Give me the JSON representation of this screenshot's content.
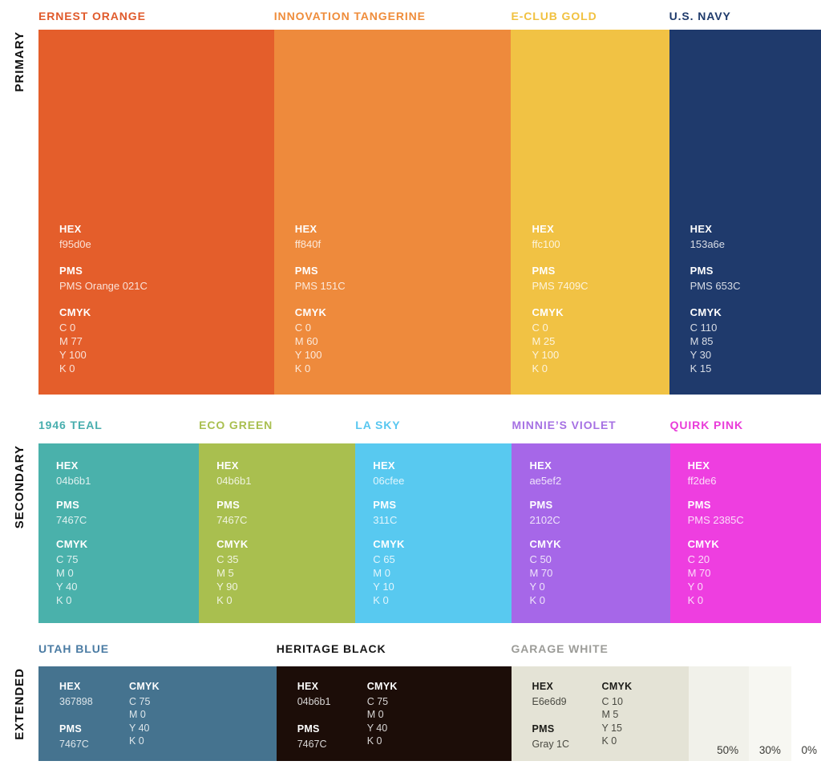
{
  "field_labels": {
    "hex": "HEX",
    "pms": "PMS",
    "cmyk": "CMYK"
  },
  "sections": [
    {
      "label": "PRIMARY",
      "swatches": [
        {
          "name": "ERNEST ORANGE",
          "title_color": "#e05a2b",
          "bg": "#e45e2b",
          "hex": "f95d0e",
          "pms": "PMS Orange 021C",
          "cmyk": [
            "C 0",
            "M 77",
            "Y 100",
            "K 0"
          ]
        },
        {
          "name": "INNOVATION TANGERINE",
          "title_color": "#ef8c3a",
          "bg": "#ee8a3c",
          "hex": "ff840f",
          "pms": "PMS 151C",
          "cmyk": [
            "C 0",
            "M 60",
            "Y 100",
            "K 0"
          ]
        },
        {
          "name": "E-CLUB GOLD",
          "title_color": "#f1c140",
          "bg": "#f1c244",
          "hex": "ffc100",
          "pms": "PMS 7409C",
          "cmyk": [
            "C 0",
            "M 25",
            "Y 100",
            "K 0"
          ]
        },
        {
          "name": "U.S. NAVY",
          "title_color": "#1e3a6b",
          "bg": "#1f3a6c",
          "hex": "153a6e",
          "pms": "PMS 653C",
          "cmyk": [
            "C 110",
            "M 85",
            "Y 30",
            "K 15"
          ]
        }
      ]
    },
    {
      "label": "SECONDARY",
      "swatches": [
        {
          "name": "1946 TEAL",
          "title_color": "#48aeae",
          "bg": "#4ab1ab",
          "hex": "04b6b1",
          "pms": "7467C",
          "cmyk": [
            "C 75",
            "M 0",
            "Y 40",
            "K 0"
          ]
        },
        {
          "name": "ECO GREEN",
          "title_color": "#a9bf4f",
          "bg": "#a9bf4f",
          "hex": "04b6b1",
          "pms": "7467C",
          "cmyk": [
            "C 35",
            "M 5",
            "Y 90",
            "K 0"
          ]
        },
        {
          "name": "LA SKY",
          "title_color": "#58c7f0",
          "bg": "#58c9f0",
          "hex": "06cfee",
          "pms": "311C",
          "cmyk": [
            "C 65",
            "M 0",
            "Y 10",
            "K 0"
          ]
        },
        {
          "name": "MINNIE’S VIOLET",
          "title_color": "#a671e3",
          "bg": "#a667e8",
          "hex": "ae5ef2",
          "pms": "2102C",
          "cmyk": [
            "C 50",
            "M 70",
            "Y 0",
            "K 0"
          ]
        },
        {
          "name": "QUIRK PINK",
          "title_color": "#e93bd9",
          "bg": "#ee3ee0",
          "hex": "ff2de6",
          "pms": "PMS 2385C",
          "cmyk": [
            "C 20",
            "M 70",
            "Y 0",
            "K 0"
          ]
        }
      ]
    },
    {
      "label": "EXTENDED",
      "swatches": [
        {
          "name": "UTAH BLUE",
          "title_color": "#4a7ba3",
          "bg": "#45738f",
          "hex": "367898",
          "pms": "7467C",
          "cmyk": [
            "C 75",
            "M 0",
            "Y 40",
            "K 0"
          ]
        },
        {
          "name": "HERITAGE BLACK",
          "title_color": "#161616",
          "bg": "#1c0d08",
          "hex": "04b6b1",
          "pms": "7467C",
          "cmyk": [
            "C 75",
            "M 0",
            "Y 40",
            "K 0"
          ]
        },
        {
          "name": "GARAGE WHITE",
          "title_color": "#9c9c98",
          "bg": "#e4e3d6",
          "hex": "E6e6d9",
          "pms": "Gray 1C",
          "cmyk": [
            "C 10",
            "M 5",
            "Y 15",
            "K 0"
          ]
        }
      ],
      "tints": [
        {
          "label": "50%",
          "bg": "#f1f1ea"
        },
        {
          "label": "30%",
          "bg": "#f7f7f2"
        },
        {
          "label": "0%",
          "bg": "#ffffff"
        }
      ]
    }
  ]
}
